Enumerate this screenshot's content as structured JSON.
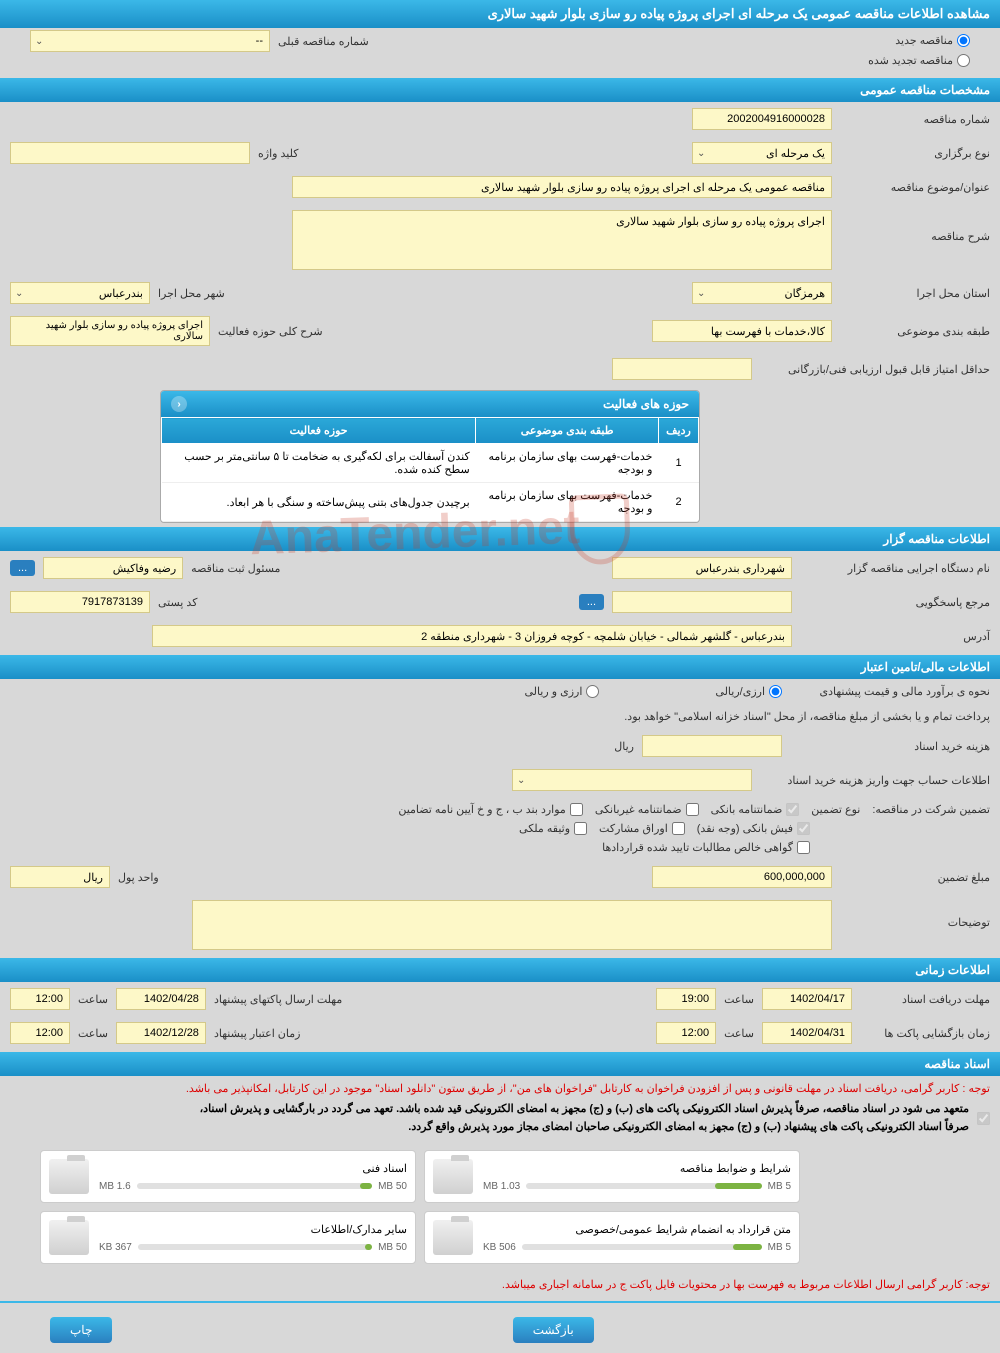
{
  "page_title": "مشاهده اطلاعات مناقصه عمومی یک مرحله ای اجرای پروژه پیاده رو سازی بلوار شهید سالاری",
  "top_radios": {
    "new": "مناقصه جدید",
    "renewed": "مناقصه تجدید شده"
  },
  "prev_number": {
    "label": "شماره مناقصه قبلی",
    "value": "--"
  },
  "section_general": "مشخصات مناقصه عمومی",
  "tender_number": {
    "label": "شماره مناقصه",
    "value": "2002004916000028"
  },
  "holding_type": {
    "label": "نوع برگزاری",
    "value": "یک مرحله ای"
  },
  "keyword": {
    "label": "کلید واژه",
    "value": ""
  },
  "subject_title": {
    "label": "عنوان/موضوع مناقصه",
    "value": "مناقصه عمومی یک مرحله ای اجرای پروژه پیاده رو سازی بلوار شهید سالاری"
  },
  "description": {
    "label": "شرح مناقصه",
    "value": "اجرای پروژه پیاده رو سازی بلوار شهید سالاری"
  },
  "province": {
    "label": "استان محل اجرا",
    "value": "هرمزگان"
  },
  "city": {
    "label": "شهر محل اجرا",
    "value": "بندرعباس"
  },
  "topic_class": {
    "label": "طبقه بندی موضوعی",
    "value": "کالا،خدمات با فهرست بها"
  },
  "activity_scope": {
    "label": "شرح کلی حوزه فعالیت",
    "value": "اجرای پروژه پیاده رو سازی بلوار شهید سالاری"
  },
  "min_score": {
    "label": "حداقل امتیاز قابل قبول ارزیابی فنی/بازرگانی",
    "value": ""
  },
  "activity_table": {
    "title": "حوزه های فعالیت",
    "cols": [
      "ردیف",
      "طبقه بندی موضوعی",
      "حوزه فعالیت"
    ],
    "rows": [
      [
        "1",
        "خدمات-فهرست بهای سازمان برنامه و بودجه",
        "کندن آسفالت برای لکه‌گیری به ضخامت تا ۵ سانتی‌متر بر حسب سطح کنده شده."
      ],
      [
        "2",
        "خدمات-فهرست بهای سازمان برنامه و بودجه",
        "برچیدن جدول‌های بتنی پیش‌ساخته و سنگی با هر ابعاد."
      ]
    ]
  },
  "section_holder": "اطلاعات مناقصه گزار",
  "holder_name": {
    "label": "نام دستگاه اجرایی مناقصه گزار",
    "value": "شهرداری بندرعباس"
  },
  "registrar": {
    "label": "مسئول ثبت مناقصه",
    "value": "رضیه وفاکیش"
  },
  "respondent": {
    "label": "مرجع پاسخگویی",
    "value": ""
  },
  "postal": {
    "label": "کد پستی",
    "value": "7917873139"
  },
  "address": {
    "label": "آدرس",
    "value": "بندرعباس - گلشهر شمالی - خیابان شلمچه - کوچه فروزان 3 - شهرداری منطقه 2"
  },
  "section_finance": "اطلاعات مالی/تامین اعتبار",
  "estimate_label": "نحوه ی برآورد مالی و قیمت پیشنهادی",
  "currency_rial": "ارزی/ریالی",
  "currency_both": "ارزی و ریالی",
  "treasury_note": "پرداخت تمام و یا بخشی از مبلغ مناقصه، از محل \"اسناد خزانه اسلامی\" خواهد بود.",
  "doc_fee": {
    "label": "هزینه خرید اسناد",
    "unit": "ریال",
    "value": ""
  },
  "account_info": {
    "label": "اطلاعات حساب جهت واریز هزینه خرید اسناد",
    "value": ""
  },
  "guarantee_label": "تضمین شرکت در مناقصه:",
  "guarantee_type_label": "نوع تضمین",
  "guarantee_types": {
    "bank": "ضمانتنامه بانکی",
    "nonbank": "ضمانتنامه غیربانکی",
    "regulation": "موارد بند ب ، ج و خ آیین نامه تضامین",
    "cash": "فیش بانکی (وجه نقد)",
    "bonds": "اوراق مشارکت",
    "property": "وثیقه ملکی",
    "receivables": "گواهی خالص مطالبات تایید شده قراردادها"
  },
  "guarantee_amount": {
    "label": "مبلغ تضمین",
    "value": "600,000,000",
    "unit_label": "واحد پول",
    "unit": "ریال"
  },
  "explain": {
    "label": "توضیحات",
    "value": ""
  },
  "section_time": "اطلاعات زمانی",
  "deadline_recv": {
    "label": "مهلت دریافت اسناد",
    "date": "1402/04/17",
    "time_label": "ساعت",
    "time": "19:00"
  },
  "deadline_send": {
    "label": "مهلت ارسال پاکتهای پیشنهاد",
    "date": "1402/04/28",
    "time_label": "ساعت",
    "time": "12:00"
  },
  "open_time": {
    "label": "زمان بازگشایی پاکت ها",
    "date": "1402/04/31",
    "time_label": "ساعت",
    "time": "12:00"
  },
  "validity": {
    "label": "زمان اعتبار پیشنهاد",
    "date": "1402/12/28",
    "time_label": "ساعت",
    "time": "12:00"
  },
  "section_docs": "اسناد مناقصه",
  "note1": "توجه : کاربر گرامی، دریافت اسناد در مهلت قانونی و پس از افزودن فراخوان به کارتابل \"فراخوان های من\"، از طریق ستون \"دانلود اسناد\" موجود در این کارتابل، امکانپذیر می باشد.",
  "note2a": "متعهد می شود در اسناد مناقصه، صرفاً پذیرش اسناد الکترونیکی پاکت های (ب) و (ج) مجهز به امضای الکترونیکی قید شده باشد. تعهد می گردد در بارگشایی و پذیرش اسناد،",
  "note2b": "صرفاً اسناد الکترونیکی پاکت های پیشنهاد (ب) و (ج) مجهز به امضای الکترونیکی صاحبان امضای مجاز مورد پذیرش واقع گردد.",
  "files": [
    {
      "title": "شرایط و ضوابط مناقصه",
      "size": "1.03 MB",
      "max": "5 MB",
      "fill": 20
    },
    {
      "title": "اسناد فنی",
      "size": "1.6 MB",
      "max": "50 MB",
      "fill": 5
    },
    {
      "title": "متن قرارداد به انضمام شرایط عمومی/خصوصی",
      "size": "506 KB",
      "max": "5 MB",
      "fill": 12
    },
    {
      "title": "سایر مدارک/اطلاعات",
      "size": "367 KB",
      "max": "50 MB",
      "fill": 3
    }
  ],
  "bottom_note": "توجه: کاربر گرامی ارسال اطلاعات مربوط به فهرست بها در محتویات فایل پاکت ج در سامانه اجباری میباشد.",
  "btn_back": "بازگشت",
  "btn_print": "چاپ",
  "dots": "...",
  "watermark": "AnaTender.net"
}
